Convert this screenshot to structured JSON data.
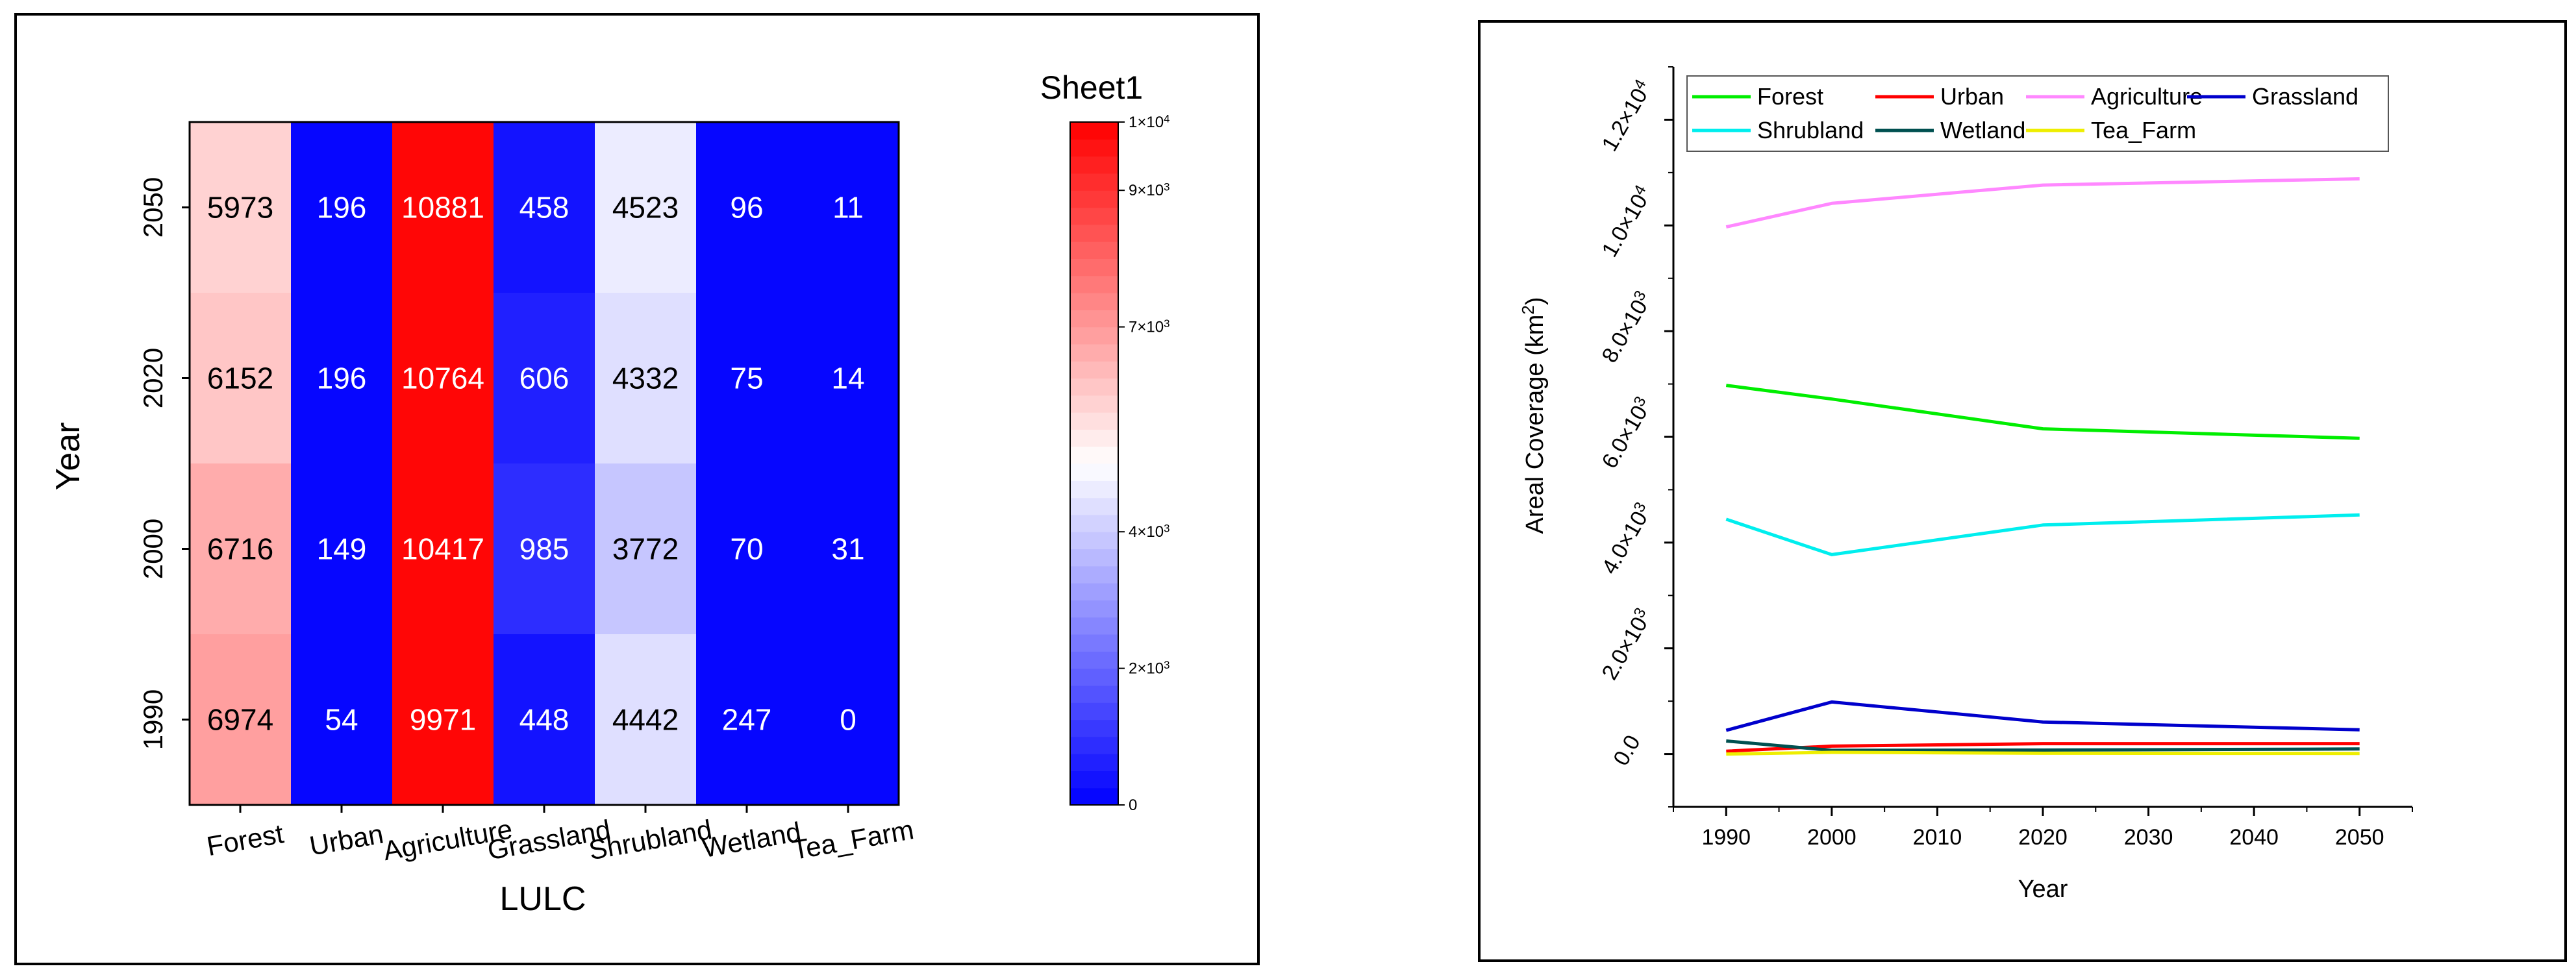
{
  "chart_data": [
    {
      "type": "heatmap",
      "title": "",
      "xlabel": "LULC",
      "ylabel": "Year",
      "x_categories": [
        "Forest",
        "Urban",
        "Agriculture",
        "Grassland",
        "Shrubland",
        "Wetland",
        "Tea_Farm"
      ],
      "y_categories": [
        "2050",
        "2020",
        "2000",
        "1990"
      ],
      "values": [
        [
          5973,
          196,
          10881,
          458,
          4523,
          96,
          11
        ],
        [
          6152,
          196,
          10764,
          606,
          4332,
          75,
          14
        ],
        [
          6716,
          149,
          10417,
          985,
          3772,
          70,
          31
        ],
        [
          6974,
          54,
          9971,
          448,
          4442,
          247,
          0
        ]
      ],
      "colorbar": {
        "title": "Sheet1",
        "range": [
          0,
          10000
        ],
        "ticks": [
          {
            "value": 0,
            "mantissa": "0",
            "exp": ""
          },
          {
            "value": 2000,
            "mantissa": "2×10",
            "exp": "3"
          },
          {
            "value": 4000,
            "mantissa": "4×10",
            "exp": "3"
          },
          {
            "value": 7000,
            "mantissa": "7×10",
            "exp": "3"
          },
          {
            "value": 9000,
            "mantissa": "9×10",
            "exp": "3"
          },
          {
            "value": 10000,
            "mantissa": "1×10",
            "exp": "4"
          }
        ],
        "colors": {
          "low": "#0000ff",
          "mid": "#ffffff",
          "high": "#ff0000"
        }
      }
    },
    {
      "type": "line",
      "title": "",
      "xlabel": "Year",
      "ylabel_main": "Areal Coverage (km",
      "ylabel_sup": "2",
      "ylabel_close": ")",
      "x": [
        1990,
        2000,
        2020,
        2050
      ],
      "xlim": [
        1985,
        2055
      ],
      "x_ticks": [
        "1990",
        "2000",
        "2010",
        "2020",
        "2030",
        "2040",
        "2050"
      ],
      "ylim": [
        -1000,
        13000
      ],
      "y_ticks": [
        {
          "value": 0,
          "mantissa": "0.0",
          "exp": ""
        },
        {
          "value": 2000,
          "mantissa": "2.0×10",
          "exp": "3"
        },
        {
          "value": 4000,
          "mantissa": "4.0×10",
          "exp": "3"
        },
        {
          "value": 6000,
          "mantissa": "6.0×10",
          "exp": "3"
        },
        {
          "value": 8000,
          "mantissa": "8.0×10",
          "exp": "3"
        },
        {
          "value": 10000,
          "mantissa": "1.0×10",
          "exp": "4"
        },
        {
          "value": 12000,
          "mantissa": "1.2×10",
          "exp": "4"
        }
      ],
      "legend_position": "top-left",
      "series": [
        {
          "name": "Forest",
          "color": "#00ee00",
          "values": [
            6974,
            6716,
            6152,
            5973
          ]
        },
        {
          "name": "Urban",
          "color": "#ff0000",
          "values": [
            54,
            149,
            196,
            196
          ]
        },
        {
          "name": "Agriculture",
          "color": "#ff88ff",
          "values": [
            9971,
            10417,
            10764,
            10881
          ]
        },
        {
          "name": "Grassland",
          "color": "#0000cc",
          "values": [
            448,
            985,
            606,
            458
          ]
        },
        {
          "name": "Shrubland",
          "color": "#00eeee",
          "values": [
            4442,
            3772,
            4332,
            4523
          ]
        },
        {
          "name": "Wetland",
          "color": "#005050",
          "values": [
            247,
            70,
            75,
            96
          ]
        },
        {
          "name": "Tea_Farm",
          "color": "#eeee00",
          "values": [
            0,
            31,
            14,
            11
          ]
        }
      ]
    }
  ]
}
